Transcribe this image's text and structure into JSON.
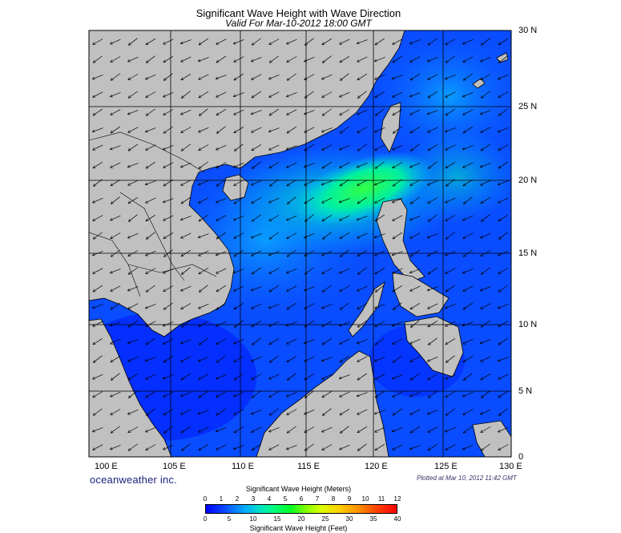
{
  "title": "Significant Wave Height with Wave Direction",
  "subtitle": "Valid For Mar-10-2012 18:00 GMT",
  "lon_labels": [
    "100 E",
    "105 E",
    "110 E",
    "115 E",
    "120 E",
    "125 E",
    "130 E"
  ],
  "lat_labels": [
    "30 N",
    "25 N",
    "20 N",
    "15 N",
    "10 N",
    "5 N",
    "0"
  ],
  "brand": "oceanweather inc.",
  "plotted": "Plotted at Mar 10, 2012 11:42 GMT",
  "colorbar": {
    "title_meters": "Significant Wave Height (Meters)",
    "title_feet": "Significant Wave Height (Feet)",
    "meters_ticks": [
      "0",
      "1",
      "2",
      "3",
      "4",
      "5",
      "6",
      "7",
      "8",
      "9",
      "10",
      "11",
      "12"
    ],
    "feet_ticks": [
      "0",
      "5",
      "10",
      "15",
      "20",
      "25",
      "30",
      "35",
      "40"
    ]
  },
  "colors": {
    "land": "#c0c0c0",
    "deep_blue": "#0000ff",
    "ocean_blue": "#0a3cff",
    "mid_blue": "#00a0ff",
    "teal": "#00e6b4",
    "green": "#2aff46",
    "grid": "#000000"
  },
  "wave_direction": "northeast-to-southwest"
}
